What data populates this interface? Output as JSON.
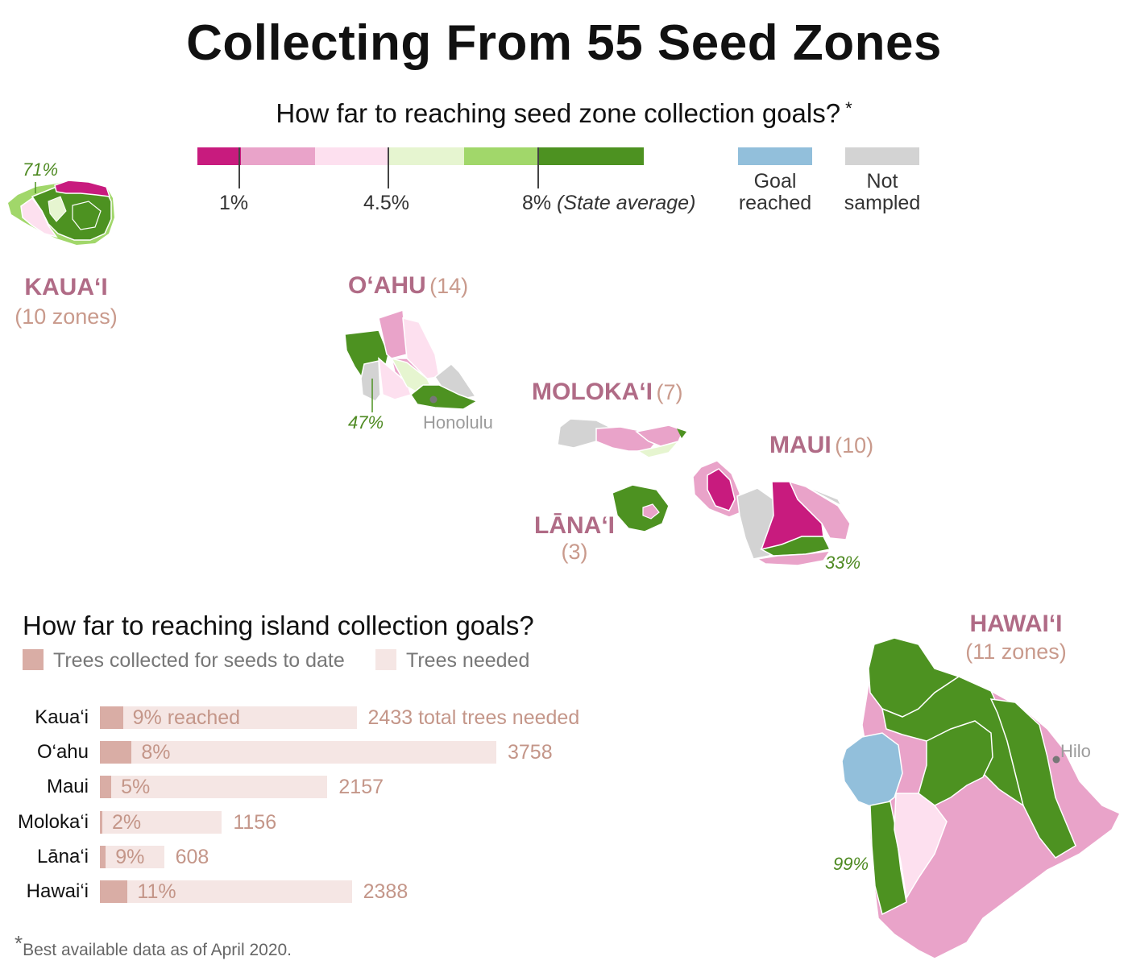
{
  "title": "Collecting From 55 Seed Zones",
  "subtitle": "How far to reaching seed zone collection goals?",
  "subtitle_mark": "*",
  "legend": {
    "colors": [
      "#c81b7e",
      "#e9a3c9",
      "#fde0ef",
      "#e6f5d0",
      "#a1d76a",
      "#4d9221"
    ],
    "ticks": [
      {
        "label": "1%"
      },
      {
        "label": "4.5%"
      },
      {
        "label": "8%",
        "note": "(State average)"
      }
    ],
    "goal_reached": {
      "label_1": "Goal",
      "label_2": "reached",
      "color": "#92bfdb"
    },
    "not_sampled": {
      "label_1": "Not",
      "label_2": "sampled",
      "color": "#d3d3d3"
    }
  },
  "islands": {
    "kauai": {
      "name": "KAUA‘I",
      "count": "(10 zones)",
      "pct": "71%"
    },
    "oahu": {
      "name": "O‘AHU",
      "count": "(14)",
      "pct": "47%",
      "city": "Honolulu"
    },
    "molokai": {
      "name": "MOLOKA‘I",
      "count": "(7)"
    },
    "lanai": {
      "name": "LĀNA‘I",
      "count": "(3)"
    },
    "maui": {
      "name": "MAUI",
      "count": "(10)",
      "pct": "33%"
    },
    "hawaii": {
      "name": "HAWAI‘I",
      "count": "(11 zones)",
      "pct": "99%",
      "city": "Hilo"
    }
  },
  "bar_section": {
    "title": "How far to reaching island collection goals?",
    "legend_collected": "Trees collected for seeds to date",
    "legend_needed": "Trees needed",
    "collected_color": "#d9ada5",
    "needed_color": "#f5e6e4"
  },
  "chart_data": {
    "type": "bar",
    "title": "How far to reaching island collection goals?",
    "categories": [
      "Kaua‘i",
      "O‘ahu",
      "Maui",
      "Moloka‘i",
      "Lāna‘i",
      "Hawai‘i"
    ],
    "series": [
      {
        "name": "Trees needed",
        "values": [
          2433,
          3758,
          2157,
          1156,
          608,
          2388
        ]
      },
      {
        "name": "Trees collected for seeds to date",
        "values": [
          219,
          301,
          108,
          23,
          55,
          263
        ]
      }
    ],
    "percent_labels": [
      "9% reached",
      "8%",
      "5%",
      "2%",
      "9%",
      "11%"
    ],
    "total_labels": [
      "2433 total trees needed",
      "3758",
      "2157",
      "1156",
      "608",
      "2388"
    ],
    "percent_reached": [
      9,
      8,
      5,
      2,
      9,
      11
    ],
    "xlim": [
      0,
      3758
    ]
  },
  "footnote": {
    "mark": "*",
    "text": "Best available data as of April 2020."
  }
}
